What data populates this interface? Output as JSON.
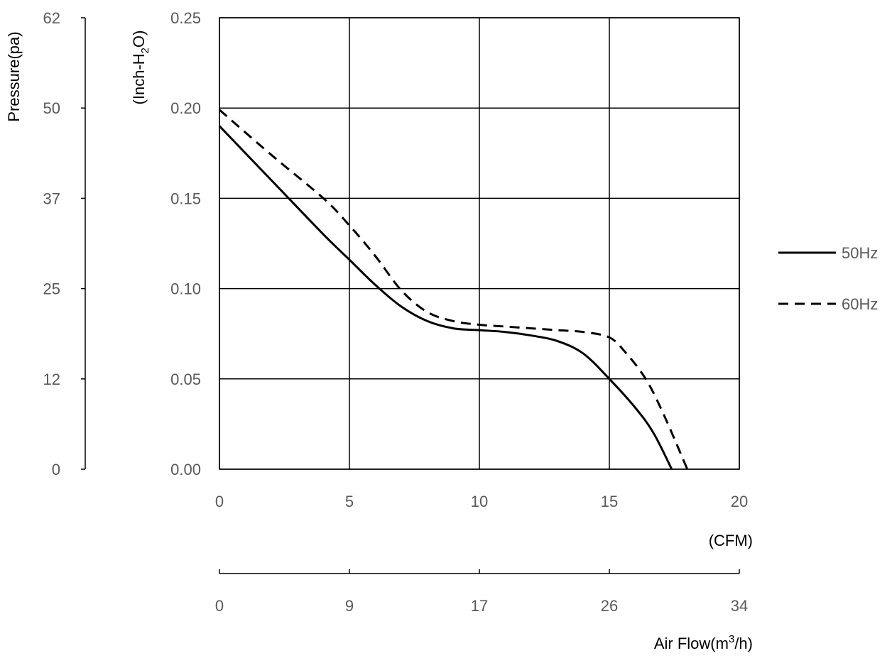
{
  "chart_data": {
    "type": "line",
    "xlabel_primary": "(CFM)",
    "xlabel_secondary_prefix": "Air Flow(m",
    "xlabel_secondary_sup": "3",
    "xlabel_secondary_suffix": "/h)",
    "ylabel_primary_prefix": "(Inch-H",
    "ylabel_primary_sub": "2",
    "ylabel_primary_suffix": "O)",
    "ylabel_secondary": "Pressure(pa)",
    "xlim": [
      0,
      20
    ],
    "ylim": [
      0,
      0.25
    ],
    "x_ticks": [
      "0",
      "5",
      "10",
      "15",
      "20"
    ],
    "x_tick_values": [
      0,
      5,
      10,
      15,
      20
    ],
    "y_ticks": [
      "0.00",
      "0.05",
      "0.10",
      "0.15",
      "0.20",
      "0.25"
    ],
    "y_tick_values": [
      0,
      0.05,
      0.1,
      0.15,
      0.2,
      0.25
    ],
    "x2_ticks": [
      "0",
      "9",
      "17",
      "26",
      "34"
    ],
    "x2_tick_values": [
      0,
      5,
      10,
      15,
      20
    ],
    "y2_ticks": [
      "0",
      "12",
      "25",
      "37",
      "50",
      "62"
    ],
    "y2_tick_values": [
      0,
      0.05,
      0.1,
      0.15,
      0.2,
      0.25
    ],
    "grid": true,
    "legend_position": "right",
    "series": [
      {
        "name": "50Hz",
        "style": "solid",
        "color": "#000000",
        "x": [
          0,
          2,
          4,
          5,
          6,
          7,
          8,
          9,
          10,
          11,
          12,
          13,
          14,
          15,
          16,
          16.7,
          17.4
        ],
        "y": [
          0.19,
          0.16,
          0.13,
          0.116,
          0.102,
          0.09,
          0.082,
          0.078,
          0.077,
          0.076,
          0.074,
          0.071,
          0.064,
          0.05,
          0.034,
          0.02,
          0.0
        ]
      },
      {
        "name": "60Hz",
        "style": "dashed",
        "color": "#000000",
        "x": [
          0,
          2,
          4,
          5,
          6,
          7,
          8,
          9,
          10,
          11,
          12,
          13,
          14,
          15,
          15.6,
          16.4,
          17.1,
          18.0
        ],
        "y": [
          0.199,
          0.174,
          0.15,
          0.135,
          0.118,
          0.099,
          0.087,
          0.082,
          0.08,
          0.079,
          0.078,
          0.077,
          0.076,
          0.073,
          0.065,
          0.05,
          0.03,
          0.0
        ]
      }
    ]
  }
}
